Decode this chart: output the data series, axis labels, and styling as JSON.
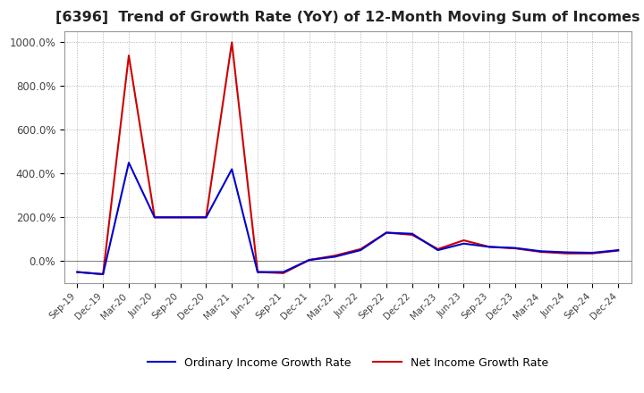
{
  "title": "[6396]  Trend of Growth Rate (YoY) of 12-Month Moving Sum of Incomes",
  "title_fontsize": 11.5,
  "legend_labels": [
    "Ordinary Income Growth Rate",
    "Net Income Growth Rate"
  ],
  "line_colors": [
    "#0000cc",
    "#cc0000"
  ],
  "x_labels": [
    "Sep-19",
    "Dec-19",
    "Mar-20",
    "Jun-20",
    "Sep-20",
    "Dec-20",
    "Mar-21",
    "Jun-21",
    "Sep-21",
    "Dec-21",
    "Mar-22",
    "Jun-22",
    "Sep-22",
    "Dec-22",
    "Mar-23",
    "Jun-23",
    "Sep-23",
    "Dec-23",
    "Mar-24",
    "Jun-24",
    "Sep-24",
    "Dec-24"
  ],
  "ordinary_income": [
    -50,
    -60,
    450,
    200,
    200,
    200,
    420,
    -50,
    -50,
    5,
    20,
    50,
    130,
    125,
    50,
    80,
    65,
    60,
    45,
    40,
    38,
    50
  ],
  "net_income": [
    -50,
    -60,
    940,
    200,
    200,
    200,
    1000,
    -50,
    -55,
    5,
    25,
    55,
    130,
    120,
    55,
    95,
    65,
    58,
    42,
    35,
    35,
    48
  ],
  "ylim": [
    -100,
    1050
  ],
  "yticks": [
    0,
    200,
    400,
    600,
    800,
    1000
  ],
  "ytick_labels": [
    "0.0%",
    "200.0%",
    "400.0%",
    "600.0%",
    "800.0%",
    "1000.0%"
  ],
  "background_color": "#ffffff",
  "grid_color": "#aaaaaa"
}
